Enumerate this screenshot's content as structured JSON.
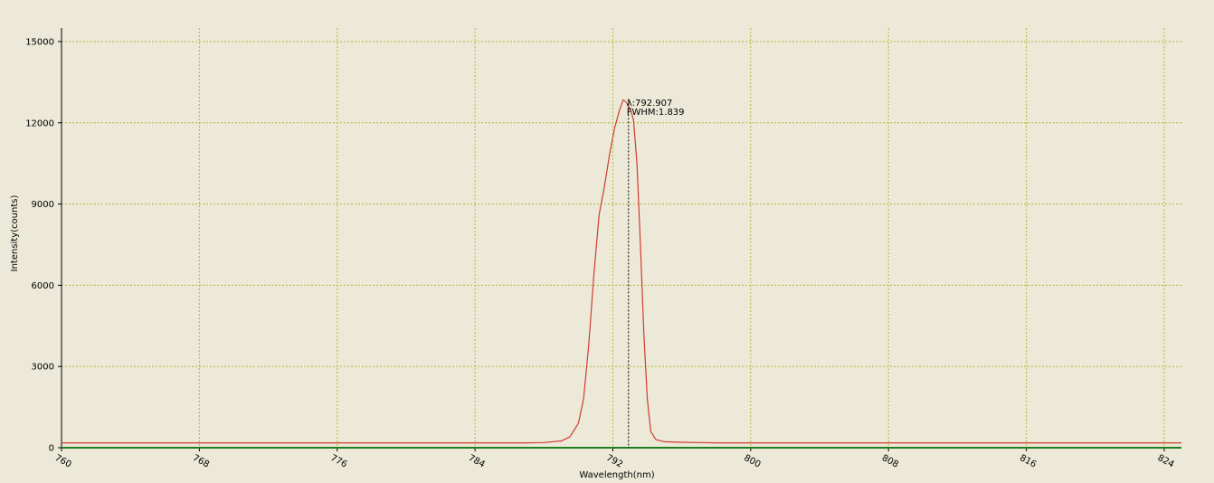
{
  "chart_data": {
    "type": "line",
    "xlabel": "Wavelength(nm)",
    "ylabel": "Intensity(counts)",
    "xlim": [
      760,
      825
    ],
    "ylim": [
      0,
      15500
    ],
    "x_ticks": [
      760,
      768,
      776,
      784,
      792,
      800,
      808,
      816,
      824
    ],
    "y_ticks": [
      0,
      3000,
      6000,
      9000,
      12000,
      15000
    ],
    "grid": true,
    "legend": "none",
    "colors": {
      "spectrum": "#d23b32",
      "baseline": "#1e7f1e",
      "grid": "#b5b83c",
      "marker": "#000000",
      "background": "#ece9d8"
    },
    "series": [
      {
        "x": [
          760,
          785,
          787,
          788,
          789,
          789.5,
          790,
          790.3,
          790.6,
          790.9,
          791.2,
          791.5,
          791.8,
          792.1,
          792.4,
          792.6,
          792.8,
          792.9,
          793.0,
          793.2,
          793.4,
          793.6,
          793.8,
          794.0,
          794.2,
          794.5,
          795,
          796,
          797,
          798,
          800,
          810,
          825
        ],
        "values": [
          180,
          180,
          180,
          190,
          250,
          400,
          900,
          1800,
          3800,
          6400,
          8600,
          9600,
          10800,
          11800,
          12500,
          12850,
          12750,
          12600,
          12550,
          12100,
          10500,
          7500,
          4200,
          1800,
          600,
          300,
          220,
          200,
          190,
          180,
          180,
          180,
          180
        ]
      },
      {
        "x": [
          760,
          825
        ],
        "values": [
          0,
          0
        ]
      }
    ],
    "marker": {
      "x": 792.907,
      "label_lambda": "λ:792.907",
      "label_fwhm": "FWHM:1.839"
    }
  }
}
